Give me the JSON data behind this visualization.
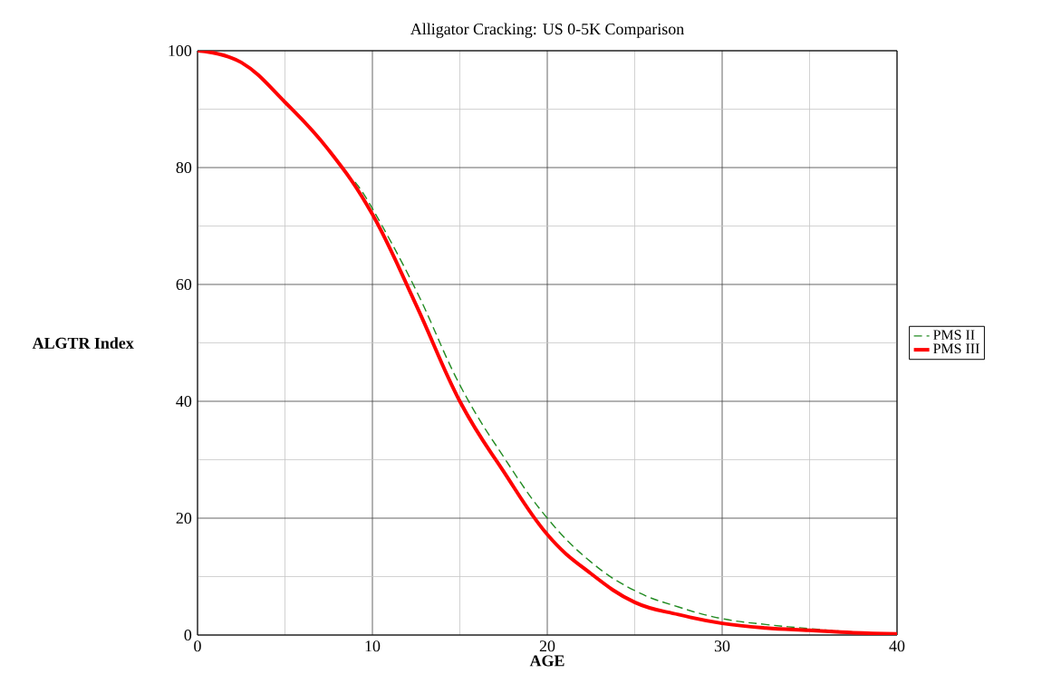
{
  "chart_data": {
    "type": "line",
    "title": "Alligator Cracking: US 0-5K Comparison",
    "xlabel": "AGE",
    "ylabel": "ALGTR Index",
    "x": [
      0,
      2.5,
      5,
      7.5,
      10,
      12.5,
      15,
      17.5,
      20,
      22.5,
      25,
      27.5,
      30,
      32.5,
      35,
      37.5,
      40
    ],
    "series": [
      {
        "name": "PMS II",
        "color": "#228b22",
        "line_style": "dashed",
        "x": [
          9,
          10,
          12.5,
          15,
          17.5,
          20,
          22.5,
          25,
          27.5,
          30,
          32.5,
          35,
          37.5,
          40
        ],
        "values": [
          77.5,
          73,
          59,
          42.8,
          30.5,
          20,
          12.5,
          7.6,
          4.8,
          2.8,
          1.8,
          1.1,
          0.5,
          0.2
        ]
      },
      {
        "name": "PMS III",
        "color": "#ff0000",
        "line_style": "solid",
        "values": [
          100,
          98,
          91.2,
          83,
          72,
          56.5,
          40,
          28,
          17.2,
          10.5,
          5.6,
          3.5,
          2.0,
          1.2,
          0.8,
          0.4,
          0.2
        ]
      }
    ],
    "xlim": [
      0,
      40
    ],
    "xticks": [
      0,
      10,
      20,
      30,
      40
    ],
    "ylim": [
      0,
      100
    ],
    "yticks": [
      0,
      20,
      40,
      60,
      80,
      100
    ],
    "grid": true,
    "legend": "right",
    "marker": "none"
  }
}
